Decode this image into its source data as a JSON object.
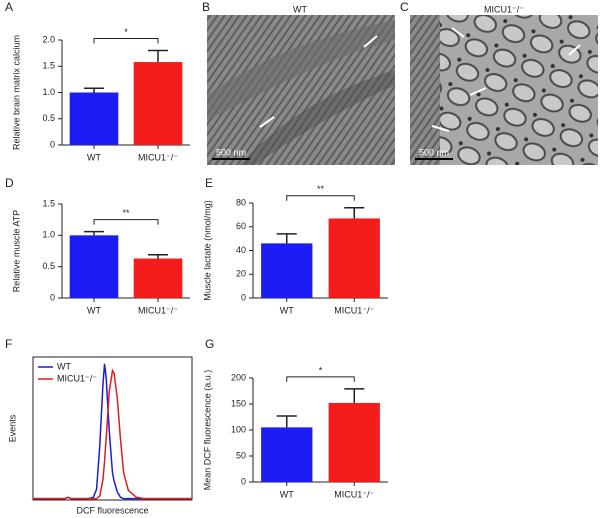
{
  "chart_data": [
    {
      "type": "bar",
      "panel": "A",
      "ylabel": "Relative brain matrix calcium",
      "categories": [
        "WT",
        "MICU1⁻/⁻"
      ],
      "values": [
        1.0,
        1.58
      ],
      "errors": [
        0.08,
        0.22
      ],
      "colors": [
        "#1c1cf5",
        "#f51c1c"
      ],
      "ylim": [
        0,
        2
      ],
      "yticks": [
        0,
        0.5,
        {
          "value": 1,
          "label": "1.0"
        },
        1.5,
        {
          "value": 2,
          "label": "2.0"
        }
      ],
      "significance": "*"
    },
    {
      "type": "bar",
      "panel": "D",
      "ylabel": "Relative muscle ATP",
      "categories": [
        "WT",
        "MICU1⁻/⁻"
      ],
      "values": [
        1.0,
        0.63
      ],
      "errors": [
        0.06,
        0.06
      ],
      "colors": [
        "#1c1cf5",
        "#f51c1c"
      ],
      "ylim": [
        0,
        1.5
      ],
      "yticks": [
        0,
        0.5,
        {
          "value": 1,
          "label": "1.0"
        },
        1.5
      ],
      "significance": "**"
    },
    {
      "type": "bar",
      "panel": "E",
      "ylabel": "Muscle lactate (nmol/mg)",
      "categories": [
        "WT",
        "MICU1⁻/⁻"
      ],
      "values": [
        46,
        67
      ],
      "errors": [
        8,
        9
      ],
      "colors": [
        "#1c1cf5",
        "#f51c1c"
      ],
      "ylim": [
        0,
        80
      ],
      "yticks": [
        0,
        20,
        40,
        60,
        80
      ],
      "significance": "**"
    },
    {
      "type": "line",
      "panel": "F",
      "ylabel": "Events",
      "xlabel": "DCF fluorescence",
      "x": [
        0,
        10,
        20,
        22,
        24,
        30,
        35,
        38,
        40,
        42,
        44,
        45,
        46,
        48,
        50,
        51,
        53,
        55,
        57,
        60,
        65,
        70,
        100
      ],
      "xlim": [
        0,
        100
      ],
      "ylim": [
        0,
        105
      ],
      "series": [
        {
          "name": "WT",
          "color": "#1c1cd0",
          "values": [
            1,
            1,
            1,
            2,
            1,
            1,
            1,
            2,
            8,
            40,
            85,
            100,
            90,
            50,
            20,
            14,
            6,
            2,
            1,
            1,
            1,
            1,
            1
          ]
        },
        {
          "name": "MICU1⁻/⁻",
          "color": "#e01c1c",
          "values": [
            1,
            1,
            1,
            2,
            1,
            1,
            1,
            1,
            1,
            3,
            15,
            28,
            45,
            80,
            95,
            93,
            75,
            45,
            20,
            7,
            2,
            1,
            1
          ]
        }
      ]
    },
    {
      "type": "bar",
      "panel": "G",
      "ylabel": "Mean DCF fluorescence (a.u.)",
      "categories": [
        "WT",
        "MICU1⁻/⁻"
      ],
      "values": [
        105,
        152
      ],
      "errors": [
        22,
        27
      ],
      "colors": [
        "#1c1cf5",
        "#f51c1c"
      ],
      "ylim": [
        0,
        200
      ],
      "yticks": [
        0,
        50,
        100,
        150,
        200
      ],
      "significance": "*"
    }
  ],
  "images": [
    {
      "panel": "B",
      "title": "WT",
      "scale_bar": "500 nm"
    },
    {
      "panel": "C",
      "title": "MICU1⁻/⁻",
      "scale_bar": "500 nm"
    }
  ]
}
